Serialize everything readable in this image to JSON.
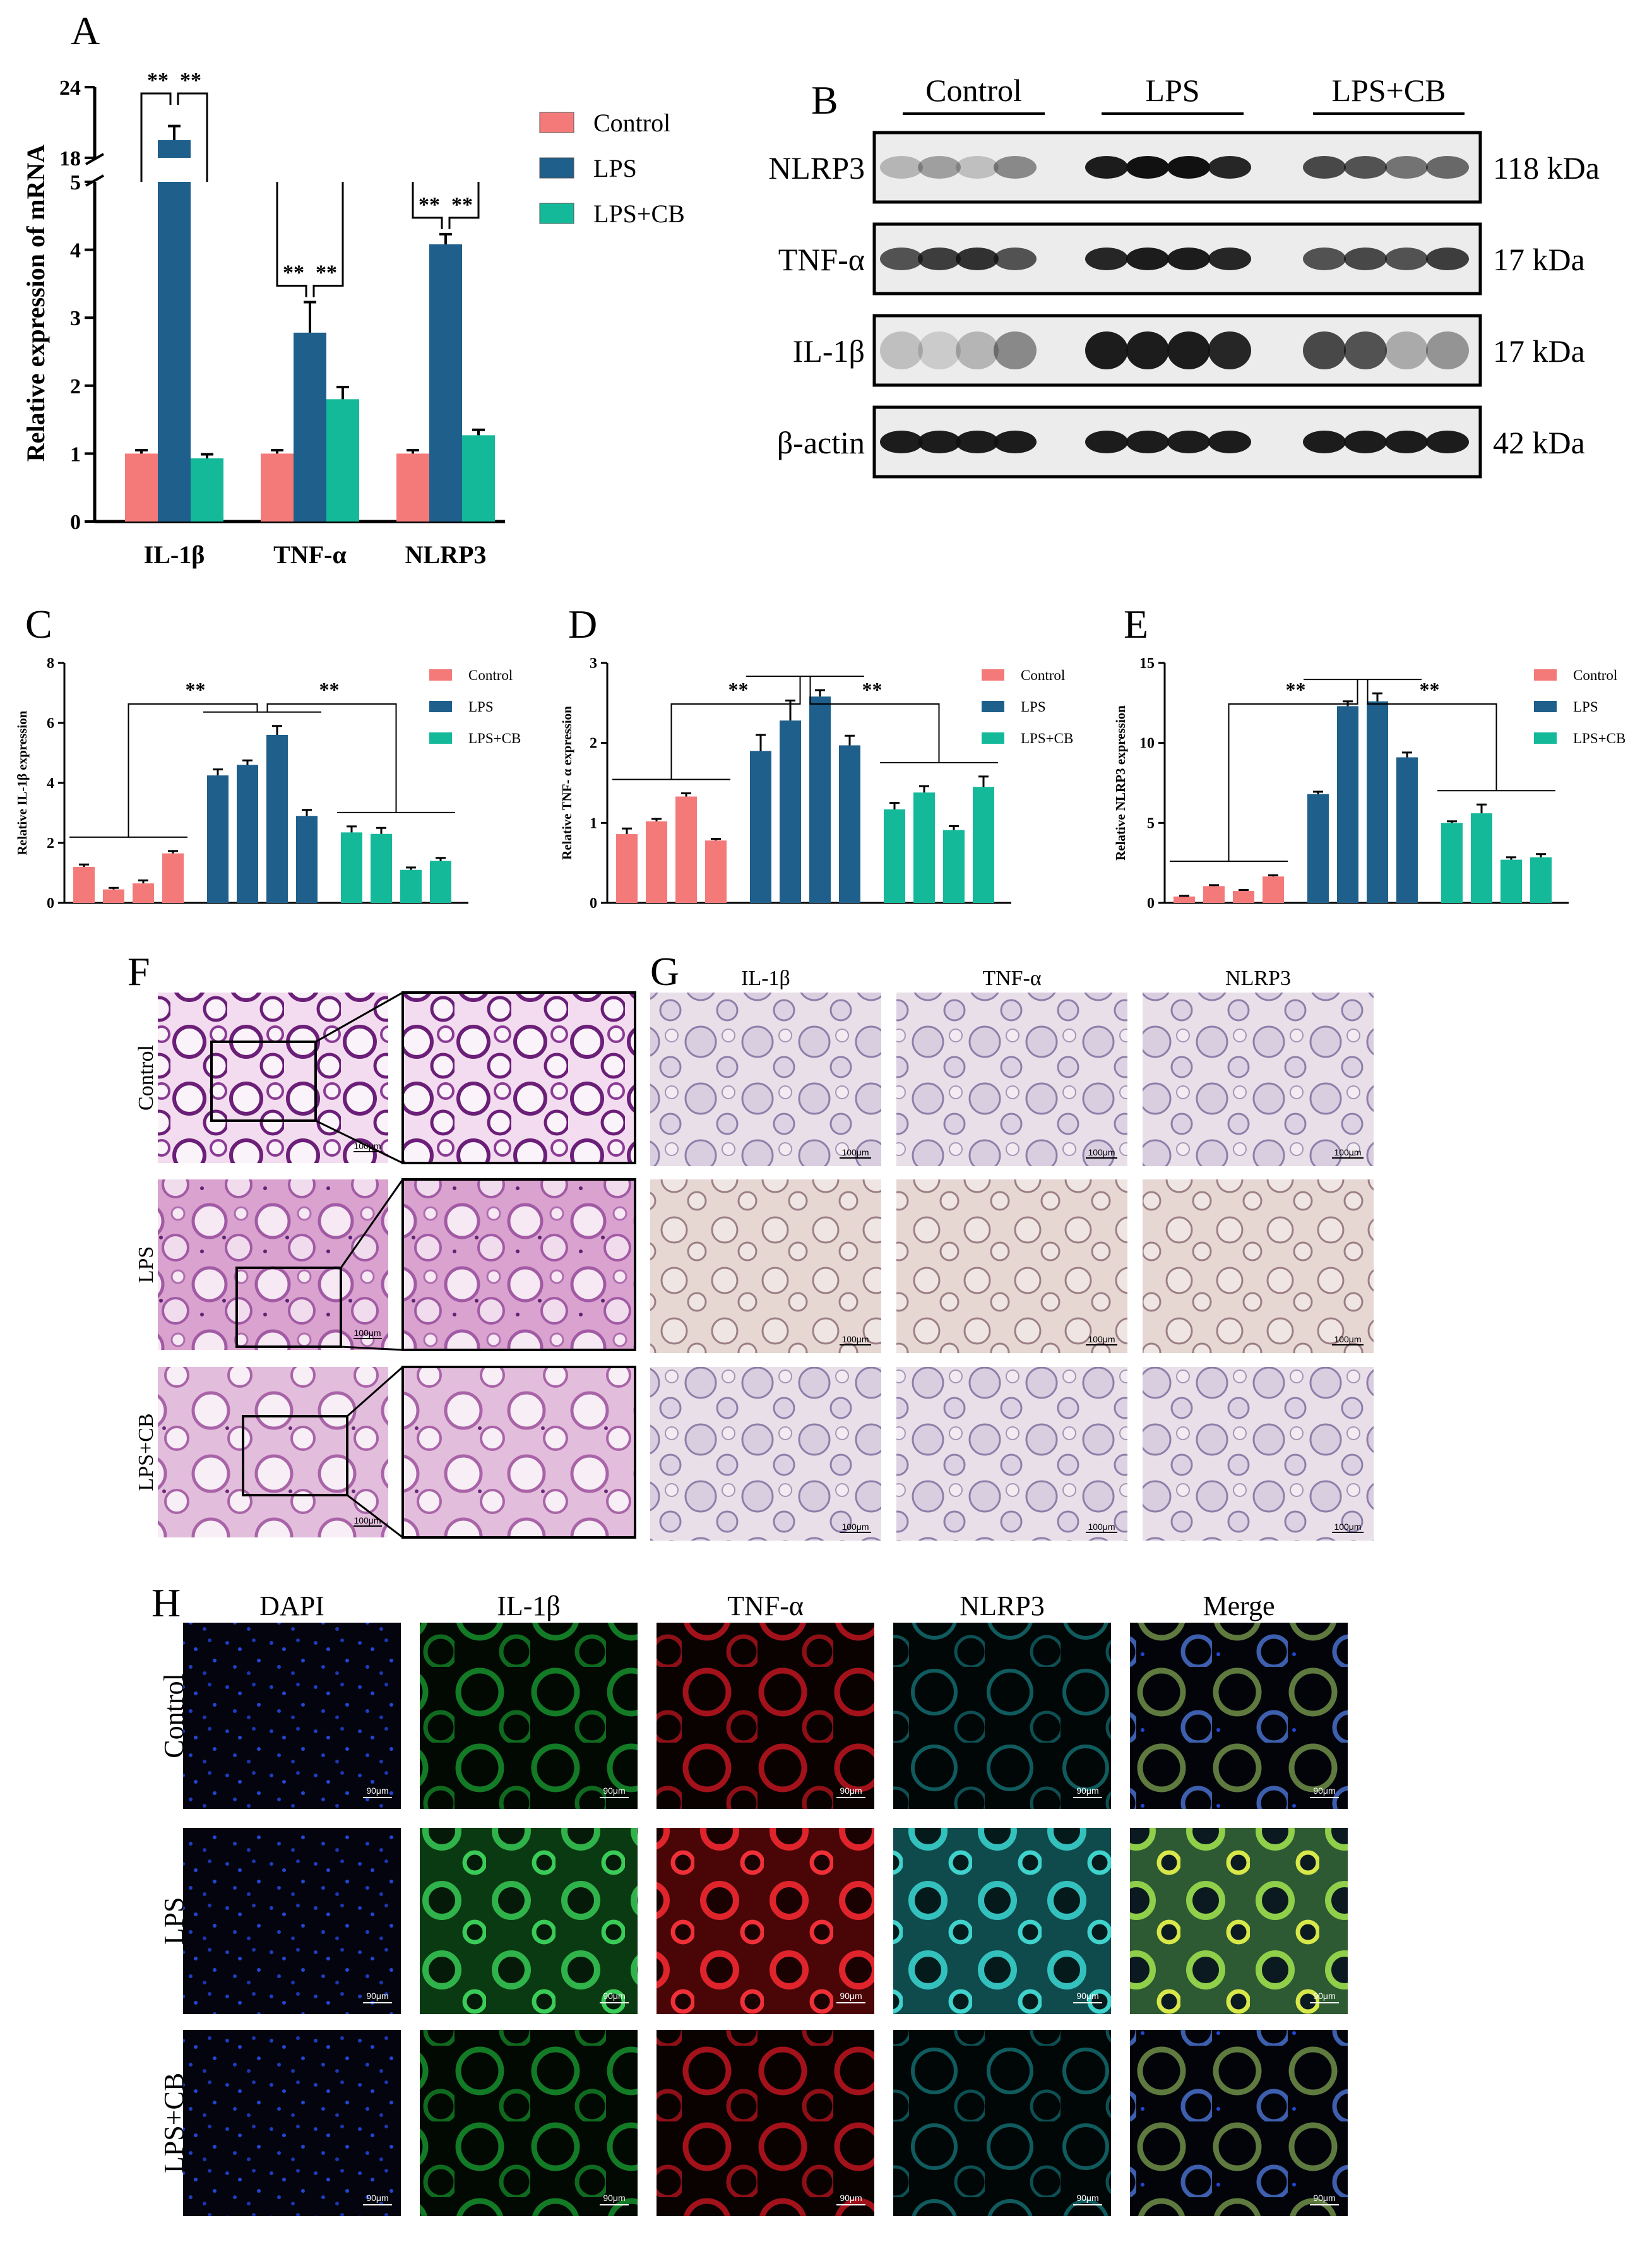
{
  "panel_labels": {
    "a": "A",
    "b": "B",
    "c": "C",
    "d": "D",
    "e": "E",
    "f": "F",
    "g": "G",
    "h": "H"
  },
  "colors": {
    "control": "#f47a7a",
    "lps": "#1f5f8b",
    "lpscb": "#14b99a",
    "grid": "#000000"
  },
  "legend": [
    "Control",
    "LPS",
    "LPS+CB"
  ],
  "significance": "**",
  "chart_data": [
    {
      "id": "A",
      "type": "bar",
      "ylabel": "Relative expression of mRNA",
      "categories": [
        "IL-1β",
        "TNF-α",
        "NLRP3"
      ],
      "yticks": [
        "0",
        "1",
        "2",
        "3",
        "4",
        "5",
        "18",
        "24"
      ],
      "axis_break": {
        "lower": [
          0,
          5
        ],
        "upper": [
          18,
          24
        ]
      },
      "series": [
        {
          "name": "Control",
          "values": [
            1.0,
            1.0,
            1.0
          ],
          "errors": [
            0.05,
            0.05,
            0.05
          ]
        },
        {
          "name": "LPS",
          "values": [
            19.5,
            2.78,
            4.08
          ],
          "errors": [
            1.2,
            0.45,
            0.15
          ]
        },
        {
          "name": "LPS+CB",
          "values": [
            0.93,
            1.8,
            1.27
          ],
          "errors": [
            0.06,
            0.18,
            0.08
          ]
        }
      ]
    },
    {
      "id": "C",
      "type": "bar",
      "ylabel": "Relative IL-1β expression",
      "ylim": [
        0,
        8
      ],
      "yticks": [
        "0",
        "2",
        "4",
        "6",
        "8"
      ],
      "groups": [
        {
          "name": "Control",
          "values": [
            1.2,
            0.45,
            0.65,
            1.65
          ],
          "errors": [
            0.08,
            0.05,
            0.1,
            0.08
          ]
        },
        {
          "name": "LPS",
          "values": [
            4.25,
            4.6,
            5.6,
            2.9
          ],
          "errors": [
            0.2,
            0.15,
            0.3,
            0.2
          ]
        },
        {
          "name": "LPS+CB",
          "values": [
            2.35,
            2.3,
            1.1,
            1.4
          ],
          "errors": [
            0.2,
            0.2,
            0.08,
            0.1
          ]
        }
      ]
    },
    {
      "id": "D",
      "type": "bar",
      "ylabel": "Relative TNF- α expression",
      "ylim": [
        0,
        3
      ],
      "yticks": [
        "0",
        "1",
        "2",
        "3"
      ],
      "groups": [
        {
          "name": "Control",
          "values": [
            0.86,
            1.02,
            1.33,
            0.78
          ],
          "errors": [
            0.07,
            0.03,
            0.04,
            0.02
          ]
        },
        {
          "name": "LPS",
          "values": [
            1.9,
            2.28,
            2.58,
            1.97
          ],
          "errors": [
            0.2,
            0.25,
            0.08,
            0.12
          ]
        },
        {
          "name": "LPS+CB",
          "values": [
            1.17,
            1.38,
            0.91,
            1.45
          ],
          "errors": [
            0.08,
            0.08,
            0.05,
            0.13
          ]
        }
      ]
    },
    {
      "id": "E",
      "type": "bar",
      "ylabel": "Relative NLRP3 expression",
      "ylim": [
        0,
        15
      ],
      "yticks": [
        "0",
        "5",
        "10",
        "15"
      ],
      "groups": [
        {
          "name": "Control",
          "values": [
            0.4,
            1.05,
            0.75,
            1.65
          ],
          "errors": [
            0.04,
            0.06,
            0.06,
            0.08
          ]
        },
        {
          "name": "LPS",
          "values": [
            6.8,
            12.3,
            12.6,
            9.1
          ],
          "errors": [
            0.15,
            0.3,
            0.5,
            0.3
          ]
        },
        {
          "name": "LPS+CB",
          "values": [
            5.0,
            5.6,
            2.7,
            2.85
          ],
          "errors": [
            0.1,
            0.55,
            0.15,
            0.2
          ]
        }
      ]
    }
  ],
  "western": {
    "groups": [
      "Control",
      "LPS",
      "LPS+CB"
    ],
    "rows": [
      {
        "label": "NLRP3",
        "kda": "118 kDa"
      },
      {
        "label": "TNF-α",
        "kda": "17 kDa"
      },
      {
        "label": "IL-1β",
        "kda": "17 kDa"
      },
      {
        "label": "β-actin",
        "kda": "42 kDa"
      }
    ]
  },
  "histology": {
    "rows": [
      "Control",
      "LPS",
      "LPS+CB"
    ],
    "ihc_cols": [
      "IL-1β",
      "TNF-α",
      "NLRP3"
    ],
    "scale": "100μm"
  },
  "fluorescence": {
    "cols": [
      "DAPI",
      "IL-1β",
      "TNF-α",
      "NLRP3",
      "Merge"
    ],
    "rows": [
      "Control",
      "LPS",
      "LPS+CB"
    ],
    "scale": "90μm"
  }
}
